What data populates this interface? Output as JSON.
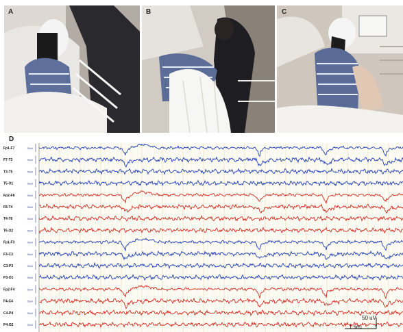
{
  "panels": {
    "a": {
      "letter": "A"
    },
    "b": {
      "letter": "B"
    },
    "c": {
      "letter": "C"
    },
    "d": {
      "letter": "D"
    }
  },
  "eeg": {
    "channels": [
      {
        "label": "Fp1-F7",
        "color": "#1f3db5"
      },
      {
        "label": "F7-T3",
        "color": "#1f3db5"
      },
      {
        "label": "T3-T5",
        "color": "#1f3db5"
      },
      {
        "label": "T5-O1",
        "color": "#1f3db5"
      },
      {
        "label": "Fp2-F8",
        "color": "#d42a1f"
      },
      {
        "label": "F8-T4",
        "color": "#d42a1f"
      },
      {
        "label": "T4-T6",
        "color": "#d42a1f"
      },
      {
        "label": "T6-O2",
        "color": "#d42a1f"
      },
      {
        "label": "Fp1-F3",
        "color": "#1f3db5"
      },
      {
        "label": "F3-C3",
        "color": "#1f3db5"
      },
      {
        "label": "C3-P3",
        "color": "#1f3db5"
      },
      {
        "label": "P3-O1",
        "color": "#1f3db5"
      },
      {
        "label": "Fp2-F4",
        "color": "#d42a1f"
      },
      {
        "label": "F4-C4",
        "color": "#d42a1f"
      },
      {
        "label": "C4-P4",
        "color": "#d42a1f"
      },
      {
        "label": "P4-O2",
        "color": "#d42a1f"
      }
    ],
    "unit_label": "50uV",
    "scale_voltage": "50 uV",
    "scale_time": "1 sec"
  }
}
